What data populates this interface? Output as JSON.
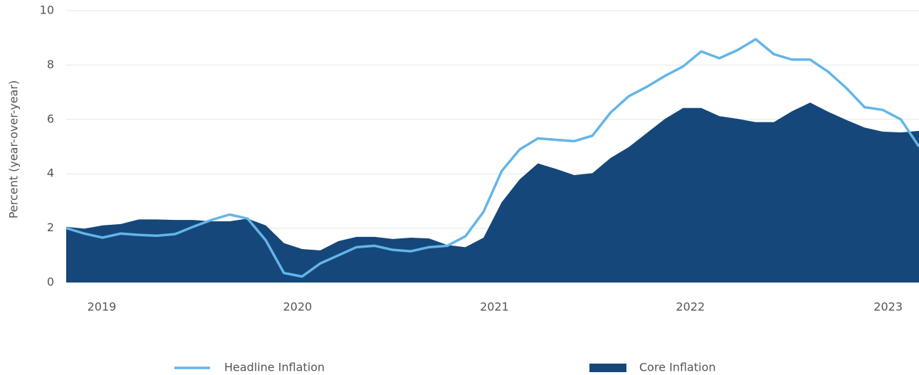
{
  "chart_data": {
    "type": "line",
    "y_label": "Percent (year-over-year)",
    "x": [
      0,
      1,
      2,
      3,
      4,
      5,
      6,
      7,
      8,
      9,
      10,
      11,
      12,
      13,
      14,
      15,
      16,
      17,
      18,
      19,
      20,
      21,
      22,
      23,
      24,
      25,
      26,
      27,
      28,
      29,
      30,
      31,
      32,
      33,
      34,
      35,
      36,
      37,
      38,
      39,
      40,
      41,
      42,
      43,
      44,
      45,
      46,
      47
    ],
    "xlim": [
      0,
      47
    ],
    "xticks": [
      {
        "value": 1.96,
        "label": "2019"
      },
      {
        "value": 12.75,
        "label": "2020"
      },
      {
        "value": 23.6,
        "label": "2021"
      },
      {
        "value": 34.4,
        "label": "2022"
      },
      {
        "value": 45.3,
        "label": "2023"
      }
    ],
    "ylim": [
      0,
      10
    ],
    "yticks": [
      0,
      2,
      4,
      6,
      8,
      10
    ],
    "grid": true,
    "series": [
      {
        "name": "Core Inflation",
        "kind": "area",
        "color": "#15477a",
        "values": [
          2.05,
          1.98,
          2.1,
          2.15,
          2.32,
          2.32,
          2.3,
          2.3,
          2.25,
          2.25,
          2.35,
          2.1,
          1.45,
          1.23,
          1.18,
          1.52,
          1.68,
          1.68,
          1.6,
          1.65,
          1.62,
          1.38,
          1.3,
          1.65,
          2.95,
          3.8,
          4.38,
          4.18,
          3.95,
          4.02,
          4.58,
          4.98,
          5.5,
          6.02,
          6.42,
          6.42,
          6.12,
          6.02,
          5.9,
          5.9,
          6.3,
          6.62,
          6.28,
          5.98,
          5.7,
          5.55,
          5.52,
          5.58
        ]
      },
      {
        "name": "Headline Inflation",
        "kind": "line",
        "color": "#64b5e8",
        "values": [
          2.0,
          1.8,
          1.65,
          1.8,
          1.75,
          1.72,
          1.78,
          2.05,
          2.3,
          2.5,
          2.35,
          1.55,
          0.35,
          0.22,
          0.7,
          1.0,
          1.3,
          1.35,
          1.2,
          1.15,
          1.3,
          1.35,
          1.7,
          2.6,
          4.1,
          4.9,
          5.3,
          5.25,
          5.2,
          5.4,
          6.25,
          6.85,
          7.2,
          7.6,
          7.95,
          8.5,
          8.25,
          8.55,
          8.95,
          8.4,
          8.2,
          8.2,
          7.75,
          7.15,
          6.45,
          6.35,
          6.0,
          5.0
        ]
      }
    ]
  }
}
